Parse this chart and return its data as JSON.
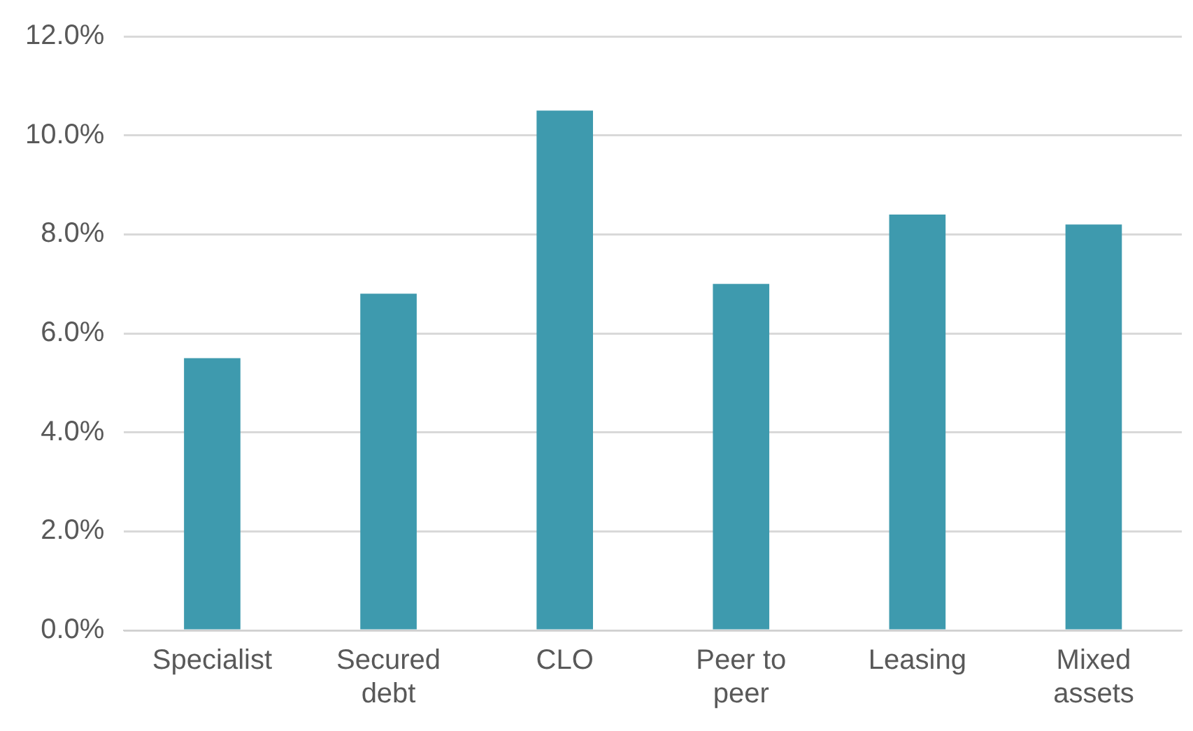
{
  "chart_data": {
    "type": "bar",
    "categories": [
      "Specialist",
      "Secured debt",
      "CLO",
      "Peer to peer",
      "Leasing",
      "Mixed assets"
    ],
    "values": [
      5.5,
      6.8,
      10.5,
      7.0,
      8.4,
      8.2
    ],
    "color": "#3e9aae",
    "ylim": [
      0,
      12
    ],
    "yticks": [
      {
        "value": 0,
        "label": "0.0%"
      },
      {
        "value": 2,
        "label": "2.0%"
      },
      {
        "value": 4,
        "label": "4.0%"
      },
      {
        "value": 6,
        "label": "6.0%"
      },
      {
        "value": 8,
        "label": "8.0%"
      },
      {
        "value": 10,
        "label": "10.0%"
      },
      {
        "value": 12,
        "label": "12.0%"
      }
    ],
    "grid": "y"
  }
}
